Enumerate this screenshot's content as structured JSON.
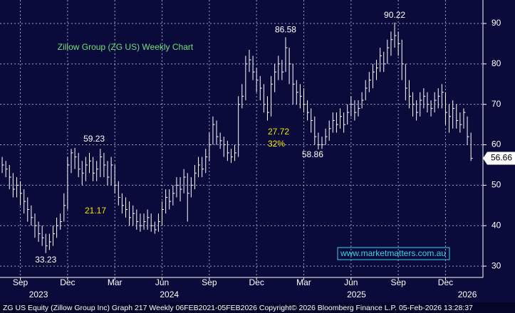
{
  "chart_data": {
    "type": "ohlc",
    "title": "Zillow Group (ZG US) Weekly Chart",
    "footer": "ZG US Equity (Zillow Group Inc) Graph 217 Weekly 06FEB2021-05FEB2026 Copyright© 2026 Bloomberg Finance L.P.  05-Feb-2026 13:28:37",
    "watermark": "www.marketmatters.com.au",
    "annotations": [
      "21.17",
      "27.72",
      "32%"
    ],
    "color": "#ffffff",
    "grid": true,
    "ylim": [
      27.2,
      95.8
    ],
    "yticks": [
      30,
      40,
      50,
      60,
      70,
      80,
      90
    ],
    "xlim": [
      -0.6,
      132.3
    ],
    "xticks": [
      {
        "value": 5,
        "label": "Sep"
      },
      {
        "value": 18,
        "label": "Dec"
      },
      {
        "value": 31,
        "label": "Mar"
      },
      {
        "value": 44,
        "label": "Jun"
      },
      {
        "value": 57,
        "label": "Sep"
      },
      {
        "value": 70,
        "label": "Dec"
      },
      {
        "value": 83,
        "label": "Mar"
      },
      {
        "value": 96,
        "label": "Jun"
      },
      {
        "value": 109,
        "label": "Sep"
      },
      {
        "value": 122,
        "label": "Dec"
      }
    ],
    "year_ticks": [
      {
        "value": 10,
        "label": "2023"
      },
      {
        "value": 46,
        "label": "2024"
      },
      {
        "value": 97.5,
        "label": "2025"
      },
      {
        "value": 128,
        "label": "2026"
      }
    ],
    "x": [
      0,
      1,
      2,
      3,
      4,
      5,
      6,
      7,
      8,
      9,
      10,
      11,
      12,
      13,
      14,
      15,
      16,
      17,
      18,
      19,
      20,
      21,
      22,
      23,
      24,
      25,
      26,
      27,
      28,
      29,
      30,
      31,
      32,
      33,
      34,
      35,
      36,
      37,
      38,
      39,
      40,
      41,
      42,
      43,
      44,
      45,
      46,
      47,
      48,
      49,
      50,
      51,
      52,
      53,
      54,
      55,
      56,
      57,
      58,
      59,
      60,
      61,
      62,
      63,
      64,
      65,
      66,
      67,
      68,
      69,
      70,
      71,
      72,
      73,
      74,
      75,
      76,
      77,
      78,
      79,
      80,
      81,
      82,
      83,
      84,
      85,
      86,
      87,
      88,
      89,
      90,
      91,
      92,
      93,
      94,
      95,
      96,
      97,
      98,
      99,
      100,
      101,
      102,
      103,
      104,
      105,
      106,
      107,
      108,
      109,
      110,
      111,
      112,
      113,
      114,
      115,
      116,
      117,
      118,
      119,
      120,
      121,
      122,
      123,
      124,
      125,
      126,
      127,
      128,
      129
    ],
    "high": [
      57,
      56,
      55,
      53,
      52,
      51,
      49,
      47,
      45,
      43,
      41,
      40,
      38,
      38,
      40,
      42,
      43,
      48,
      57,
      59,
      59.23,
      58,
      56,
      57,
      58,
      57,
      56,
      59,
      58,
      56,
      57,
      55,
      51,
      48,
      47,
      46,
      45,
      44,
      43,
      43,
      44,
      43,
      41,
      43,
      46,
      49,
      49,
      50,
      52,
      52,
      54,
      53,
      52,
      55,
      57,
      57,
      59,
      63,
      67,
      66,
      63,
      62,
      61,
      59,
      60,
      72,
      75,
      82,
      83.5,
      82,
      79,
      77,
      75,
      72,
      77,
      80,
      82,
      81,
      86.58,
      84,
      80,
      76,
      75,
      74,
      71,
      69,
      67,
      63,
      62,
      64,
      66,
      68,
      68,
      69,
      68,
      70,
      72,
      71,
      71,
      73,
      76,
      78,
      80,
      81,
      84,
      83,
      86,
      88,
      90.22,
      88,
      86,
      80,
      76,
      73,
      71,
      73,
      74,
      73,
      71,
      73,
      74,
      75,
      73,
      70,
      71,
      70,
      68,
      69,
      67,
      63
    ],
    "low": [
      53,
      52,
      49,
      47,
      47,
      45,
      43,
      41,
      40,
      37,
      36,
      35,
      33.23,
      34,
      35,
      37,
      39,
      41,
      44,
      53,
      54,
      52,
      50,
      51,
      53,
      51,
      51,
      52,
      52,
      50,
      50,
      48,
      45,
      43,
      42,
      40,
      40,
      39,
      38.5,
      39,
      39,
      38.5,
      38,
      38.5,
      40,
      43,
      44,
      45,
      47,
      46,
      48,
      41,
      47,
      49,
      52,
      52,
      53,
      56,
      60,
      60,
      59,
      57,
      56,
      55.5,
      56,
      57,
      69,
      71,
      78,
      76,
      73,
      71,
      68,
      66,
      67,
      73,
      76,
      76,
      78,
      75,
      70,
      70,
      69,
      68,
      66,
      63,
      60,
      58.86,
      59,
      60,
      61,
      63,
      63,
      64,
      63,
      65,
      67,
      66,
      67,
      69,
      71,
      73,
      74,
      76,
      78,
      78,
      80,
      82,
      84,
      82,
      76,
      71,
      69,
      67,
      66,
      67,
      69,
      68,
      67,
      68,
      69,
      69,
      65,
      63,
      64,
      64,
      63,
      64,
      60,
      56
    ],
    "close": [
      55,
      54,
      52,
      49,
      50,
      48,
      46,
      44,
      42,
      40,
      38,
      37,
      35,
      36,
      38,
      40,
      41,
      45,
      55,
      58,
      57,
      54,
      53,
      55,
      56,
      53,
      54,
      57,
      55,
      52,
      55,
      50,
      47,
      45,
      44,
      42,
      43,
      41,
      40,
      41,
      42,
      40,
      39,
      41,
      44,
      47,
      46,
      48,
      50,
      49,
      52,
      48,
      50,
      53,
      55,
      54,
      57,
      60,
      65,
      62,
      61,
      60,
      58,
      57,
      58,
      70,
      72,
      80,
      81,
      78,
      76,
      74,
      70,
      68,
      75,
      78,
      80,
      78,
      84,
      80,
      75,
      73,
      72,
      70,
      68,
      66,
      62,
      60,
      60,
      62,
      64,
      66,
      65,
      67,
      65,
      68,
      70,
      68,
      69,
      71,
      74,
      76,
      78,
      79,
      82,
      80,
      84,
      86,
      87,
      85,
      80,
      74,
      72,
      70,
      68,
      71,
      72,
      70,
      69,
      71,
      72,
      73,
      68,
      67,
      69,
      66,
      65,
      68,
      62,
      56.66
    ]
  }
}
